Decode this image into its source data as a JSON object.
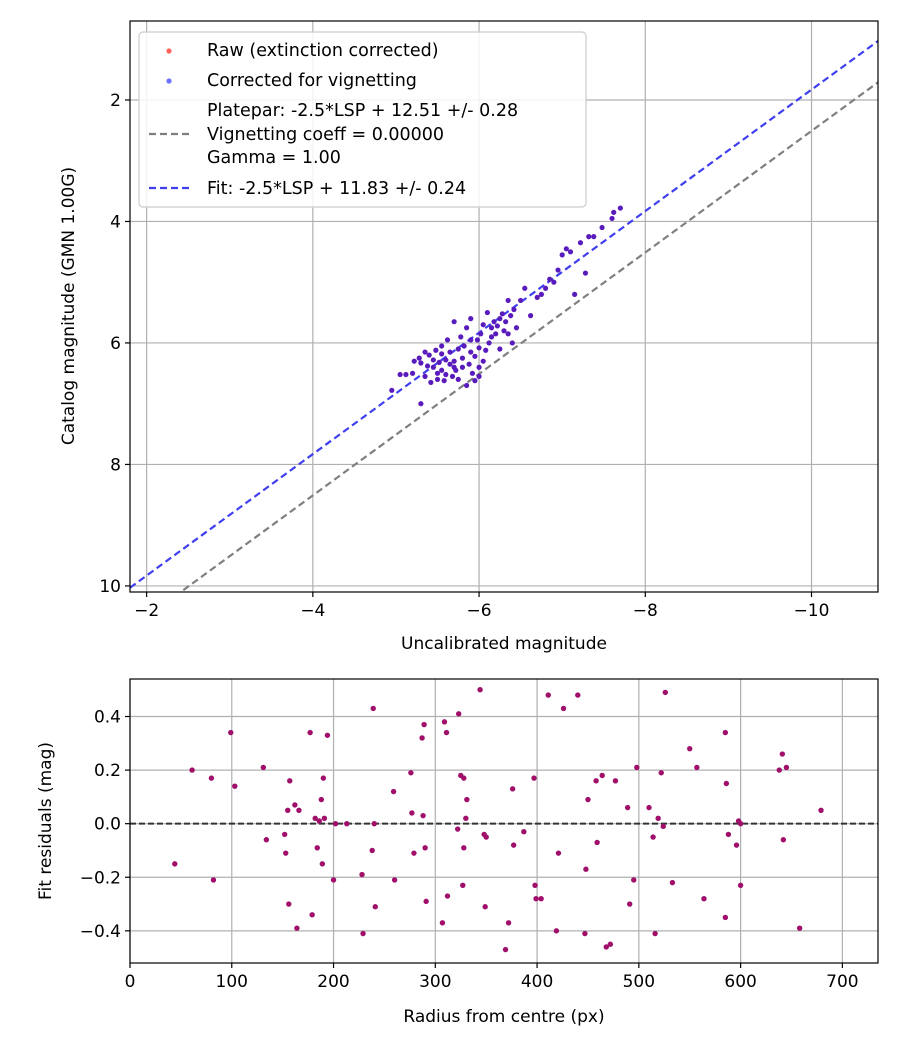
{
  "chart_data": [
    {
      "type": "scatter",
      "xlabel": "Uncalibrated magnitude",
      "ylabel": "Catalog magnitude (GMN 1.00G)",
      "xlim": [
        -1.8,
        -10.8
      ],
      "ylim": [
        10.1,
        0.7
      ],
      "x_inverted": true,
      "y_inverted": true,
      "grid": true,
      "legend_position": "upper-left",
      "xticks": [
        -2,
        -4,
        -6,
        -8,
        -10
      ],
      "xtick_labels": [
        "−2",
        "−4",
        "−6",
        "−8",
        "−10"
      ],
      "yticks": [
        2,
        4,
        6,
        8,
        10
      ],
      "ytick_labels": [
        "2",
        "4",
        "6",
        "8",
        "10"
      ],
      "legend": {
        "raw": "Raw (extinction corrected)",
        "corrected": "Corrected for vignetting",
        "platepar_line1": "Platepar: -2.5*LSP + 12.51 +/- 0.28",
        "platepar_line2": "Vignetting coeff = 0.00000",
        "platepar_line3": "Gamma = 1.00",
        "fit": "Fit: -2.5*LSP + 11.83 +/- 0.24"
      },
      "colors": {
        "raw": "#ff3b30",
        "corrected": "#3030ff",
        "overlap": "#5a1bbd",
        "platepar_line": "#7f7f7f",
        "fit_line": "#3f3fef"
      },
      "platepar_line": {
        "intercept": 12.51,
        "slope": -2.5
      },
      "fit_line": {
        "intercept": 11.83,
        "slope": -2.5
      },
      "series": [
        {
          "name": "Corrected for vignetting",
          "points": [
            [
              -4.95,
              6.78
            ],
            [
              -5.05,
              6.52
            ],
            [
              -5.12,
              6.52
            ],
            [
              -5.2,
              6.5
            ],
            [
              -5.22,
              6.3
            ],
            [
              -5.28,
              6.25
            ],
            [
              -5.3,
              6.33
            ],
            [
              -5.3,
              7.0
            ],
            [
              -5.35,
              6.55
            ],
            [
              -5.38,
              6.38
            ],
            [
              -5.4,
              6.2
            ],
            [
              -5.42,
              6.65
            ],
            [
              -5.45,
              6.28
            ],
            [
              -5.45,
              6.4
            ],
            [
              -5.48,
              6.12
            ],
            [
              -5.5,
              6.5
            ],
            [
              -5.5,
              6.6
            ],
            [
              -5.52,
              6.32
            ],
            [
              -5.55,
              6.18
            ],
            [
              -5.55,
              6.45
            ],
            [
              -5.58,
              6.62
            ],
            [
              -5.6,
              6.28
            ],
            [
              -5.6,
              6.52
            ],
            [
              -5.62,
              5.95
            ],
            [
              -5.65,
              6.35
            ],
            [
              -5.65,
              6.15
            ],
            [
              -5.68,
              6.55
            ],
            [
              -5.7,
              6.3
            ],
            [
              -5.7,
              5.65
            ],
            [
              -5.72,
              6.45
            ],
            [
              -5.75,
              6.1
            ],
            [
              -5.75,
              6.6
            ],
            [
              -5.78,
              5.9
            ],
            [
              -5.8,
              6.25
            ],
            [
              -5.8,
              6.4
            ],
            [
              -5.82,
              6.05
            ],
            [
              -5.85,
              6.7
            ],
            [
              -5.85,
              5.75
            ],
            [
              -5.88,
              6.35
            ],
            [
              -5.9,
              6.15
            ],
            [
              -5.9,
              5.6
            ],
            [
              -5.92,
              6.5
            ],
            [
              -5.95,
              6.22
            ],
            [
              -5.95,
              6.62
            ],
            [
              -5.98,
              5.95
            ],
            [
              -6.0,
              6.08
            ],
            [
              -6.0,
              6.4
            ],
            [
              -6.02,
              5.85
            ],
            [
              -6.05,
              6.3
            ],
            [
              -6.05,
              5.7
            ],
            [
              -6.08,
              6.12
            ],
            [
              -6.1,
              5.5
            ],
            [
              -6.12,
              6.0
            ],
            [
              -6.15,
              5.75
            ],
            [
              -6.18,
              5.65
            ],
            [
              -6.2,
              5.85
            ],
            [
              -6.22,
              5.72
            ],
            [
              -6.25,
              5.6
            ],
            [
              -6.25,
              6.1
            ],
            [
              -6.28,
              5.52
            ],
            [
              -6.3,
              5.8
            ],
            [
              -6.32,
              5.65
            ],
            [
              -6.35,
              5.85
            ],
            [
              -6.35,
              5.3
            ],
            [
              -6.38,
              5.55
            ],
            [
              -6.4,
              6.0
            ],
            [
              -6.42,
              5.45
            ],
            [
              -6.5,
              5.3
            ],
            [
              -6.55,
              5.1
            ],
            [
              -6.62,
              5.55
            ],
            [
              -6.7,
              5.25
            ],
            [
              -6.75,
              5.2
            ],
            [
              -6.8,
              5.1
            ],
            [
              -6.85,
              4.95
            ],
            [
              -6.9,
              5.0
            ],
            [
              -6.95,
              4.8
            ],
            [
              -7.0,
              4.55
            ],
            [
              -7.05,
              4.45
            ],
            [
              -7.1,
              4.5
            ],
            [
              -7.15,
              5.2
            ],
            [
              -7.22,
              4.35
            ],
            [
              -7.28,
              4.85
            ],
            [
              -7.32,
              4.25
            ],
            [
              -7.38,
              4.25
            ],
            [
              -7.48,
              4.1
            ],
            [
              -7.62,
              3.85
            ],
            [
              -7.7,
              3.78
            ],
            [
              -7.6,
              3.95
            ],
            [
              -6.45,
              5.75
            ],
            [
              -5.55,
              6.05
            ],
            [
              -5.35,
              6.15
            ],
            [
              -6.0,
              6.55
            ],
            [
              -5.9,
              5.95
            ],
            [
              -5.7,
              6.4
            ],
            [
              -6.15,
              5.9
            ]
          ]
        }
      ]
    },
    {
      "type": "scatter",
      "xlabel": "Radius from centre (px)",
      "ylabel": "Fit residuals (mag)",
      "xlim": [
        0,
        735
      ],
      "ylim": [
        -0.52,
        0.54
      ],
      "grid": true,
      "xticks": [
        0,
        100,
        200,
        300,
        400,
        500,
        600,
        700
      ],
      "xtick_labels": [
        "0",
        "100",
        "200",
        "300",
        "400",
        "500",
        "600",
        "700"
      ],
      "yticks": [
        -0.4,
        -0.2,
        0.0,
        0.2,
        0.4
      ],
      "ytick_labels": [
        "−0.4",
        "−0.2",
        "0.0",
        "0.2",
        "0.4"
      ],
      "zero_line": 0.0,
      "colors": {
        "points": "#a0106a",
        "zero_line": "#333333"
      },
      "series": [
        {
          "name": "residuals",
          "points": [
            [
              44,
              -0.15
            ],
            [
              61,
              0.2
            ],
            [
              80,
              0.17
            ],
            [
              82,
              -0.21
            ],
            [
              99,
              0.34
            ],
            [
              103,
              0.14
            ],
            [
              131,
              0.21
            ],
            [
              134,
              -0.06
            ],
            [
              152,
              -0.04
            ],
            [
              153,
              -0.11
            ],
            [
              155,
              0.05
            ],
            [
              156,
              -0.3
            ],
            [
              157,
              0.16
            ],
            [
              162,
              0.07
            ],
            [
              164,
              -0.39
            ],
            [
              166,
              0.05
            ],
            [
              177,
              0.34
            ],
            [
              179,
              -0.34
            ],
            [
              182,
              0.02
            ],
            [
              184,
              -0.09
            ],
            [
              186,
              0.01
            ],
            [
              188,
              0.09
            ],
            [
              189,
              -0.15
            ],
            [
              190,
              0.17
            ],
            [
              191,
              0.02
            ],
            [
              194,
              0.33
            ],
            [
              200,
              -0.21
            ],
            [
              202,
              0.0
            ],
            [
              213,
              0.0
            ],
            [
              228,
              -0.19
            ],
            [
              229,
              -0.41
            ],
            [
              238,
              -0.1
            ],
            [
              239,
              0.43
            ],
            [
              241,
              -0.31
            ],
            [
              240,
              0.0
            ],
            [
              260,
              -0.21
            ],
            [
              259,
              0.12
            ],
            [
              276,
              0.19
            ],
            [
              277,
              0.04
            ],
            [
              279,
              -0.11
            ],
            [
              287,
              0.32
            ],
            [
              288,
              0.03
            ],
            [
              289,
              0.37
            ],
            [
              290,
              -0.09
            ],
            [
              291,
              -0.29
            ],
            [
              307,
              -0.37
            ],
            [
              309,
              0.38
            ],
            [
              311,
              0.34
            ],
            [
              312,
              -0.27
            ],
            [
              322,
              -0.02
            ],
            [
              323,
              0.41
            ],
            [
              325,
              0.18
            ],
            [
              327,
              -0.23
            ],
            [
              328,
              0.17
            ],
            [
              330,
              0.02
            ],
            [
              331,
              0.09
            ],
            [
              328,
              -0.09
            ],
            [
              344,
              0.5
            ],
            [
              348,
              -0.04
            ],
            [
              349,
              -0.31
            ],
            [
              350,
              -0.05
            ],
            [
              372,
              -0.37
            ],
            [
              369,
              -0.47
            ],
            [
              376,
              0.13
            ],
            [
              377,
              -0.08
            ],
            [
              387,
              -0.03
            ],
            [
              397,
              0.17
            ],
            [
              398,
              -0.23
            ],
            [
              399,
              -0.28
            ],
            [
              404,
              -0.28
            ],
            [
              411,
              0.48
            ],
            [
              419,
              -0.4
            ],
            [
              421,
              -0.11
            ],
            [
              426,
              0.43
            ],
            [
              440,
              0.48
            ],
            [
              447,
              -0.41
            ],
            [
              448,
              -0.17
            ],
            [
              450,
              0.09
            ],
            [
              458,
              0.16
            ],
            [
              459,
              -0.07
            ],
            [
              464,
              0.18
            ],
            [
              468,
              -0.46
            ],
            [
              472,
              -0.45
            ],
            [
              477,
              0.16
            ],
            [
              489,
              0.06
            ],
            [
              491,
              -0.3
            ],
            [
              495,
              -0.21
            ],
            [
              498,
              0.21
            ],
            [
              510,
              0.06
            ],
            [
              514,
              -0.05
            ],
            [
              516,
              -0.41
            ],
            [
              519,
              0.02
            ],
            [
              522,
              0.19
            ],
            [
              524,
              -0.01
            ],
            [
              526,
              0.49
            ],
            [
              533,
              -0.22
            ],
            [
              550,
              0.28
            ],
            [
              557,
              0.21
            ],
            [
              564,
              -0.28
            ],
            [
              585,
              0.34
            ],
            [
              585,
              -0.35
            ],
            [
              586,
              0.15
            ],
            [
              588,
              -0.04
            ],
            [
              596,
              -0.08
            ],
            [
              598,
              0.01
            ],
            [
              600,
              0.0
            ],
            [
              600,
              -0.23
            ],
            [
              638,
              0.2
            ],
            [
              641,
              0.26
            ],
            [
              642,
              -0.06
            ],
            [
              645,
              0.21
            ],
            [
              658,
              -0.39
            ],
            [
              679,
              0.05
            ]
          ]
        }
      ]
    }
  ]
}
